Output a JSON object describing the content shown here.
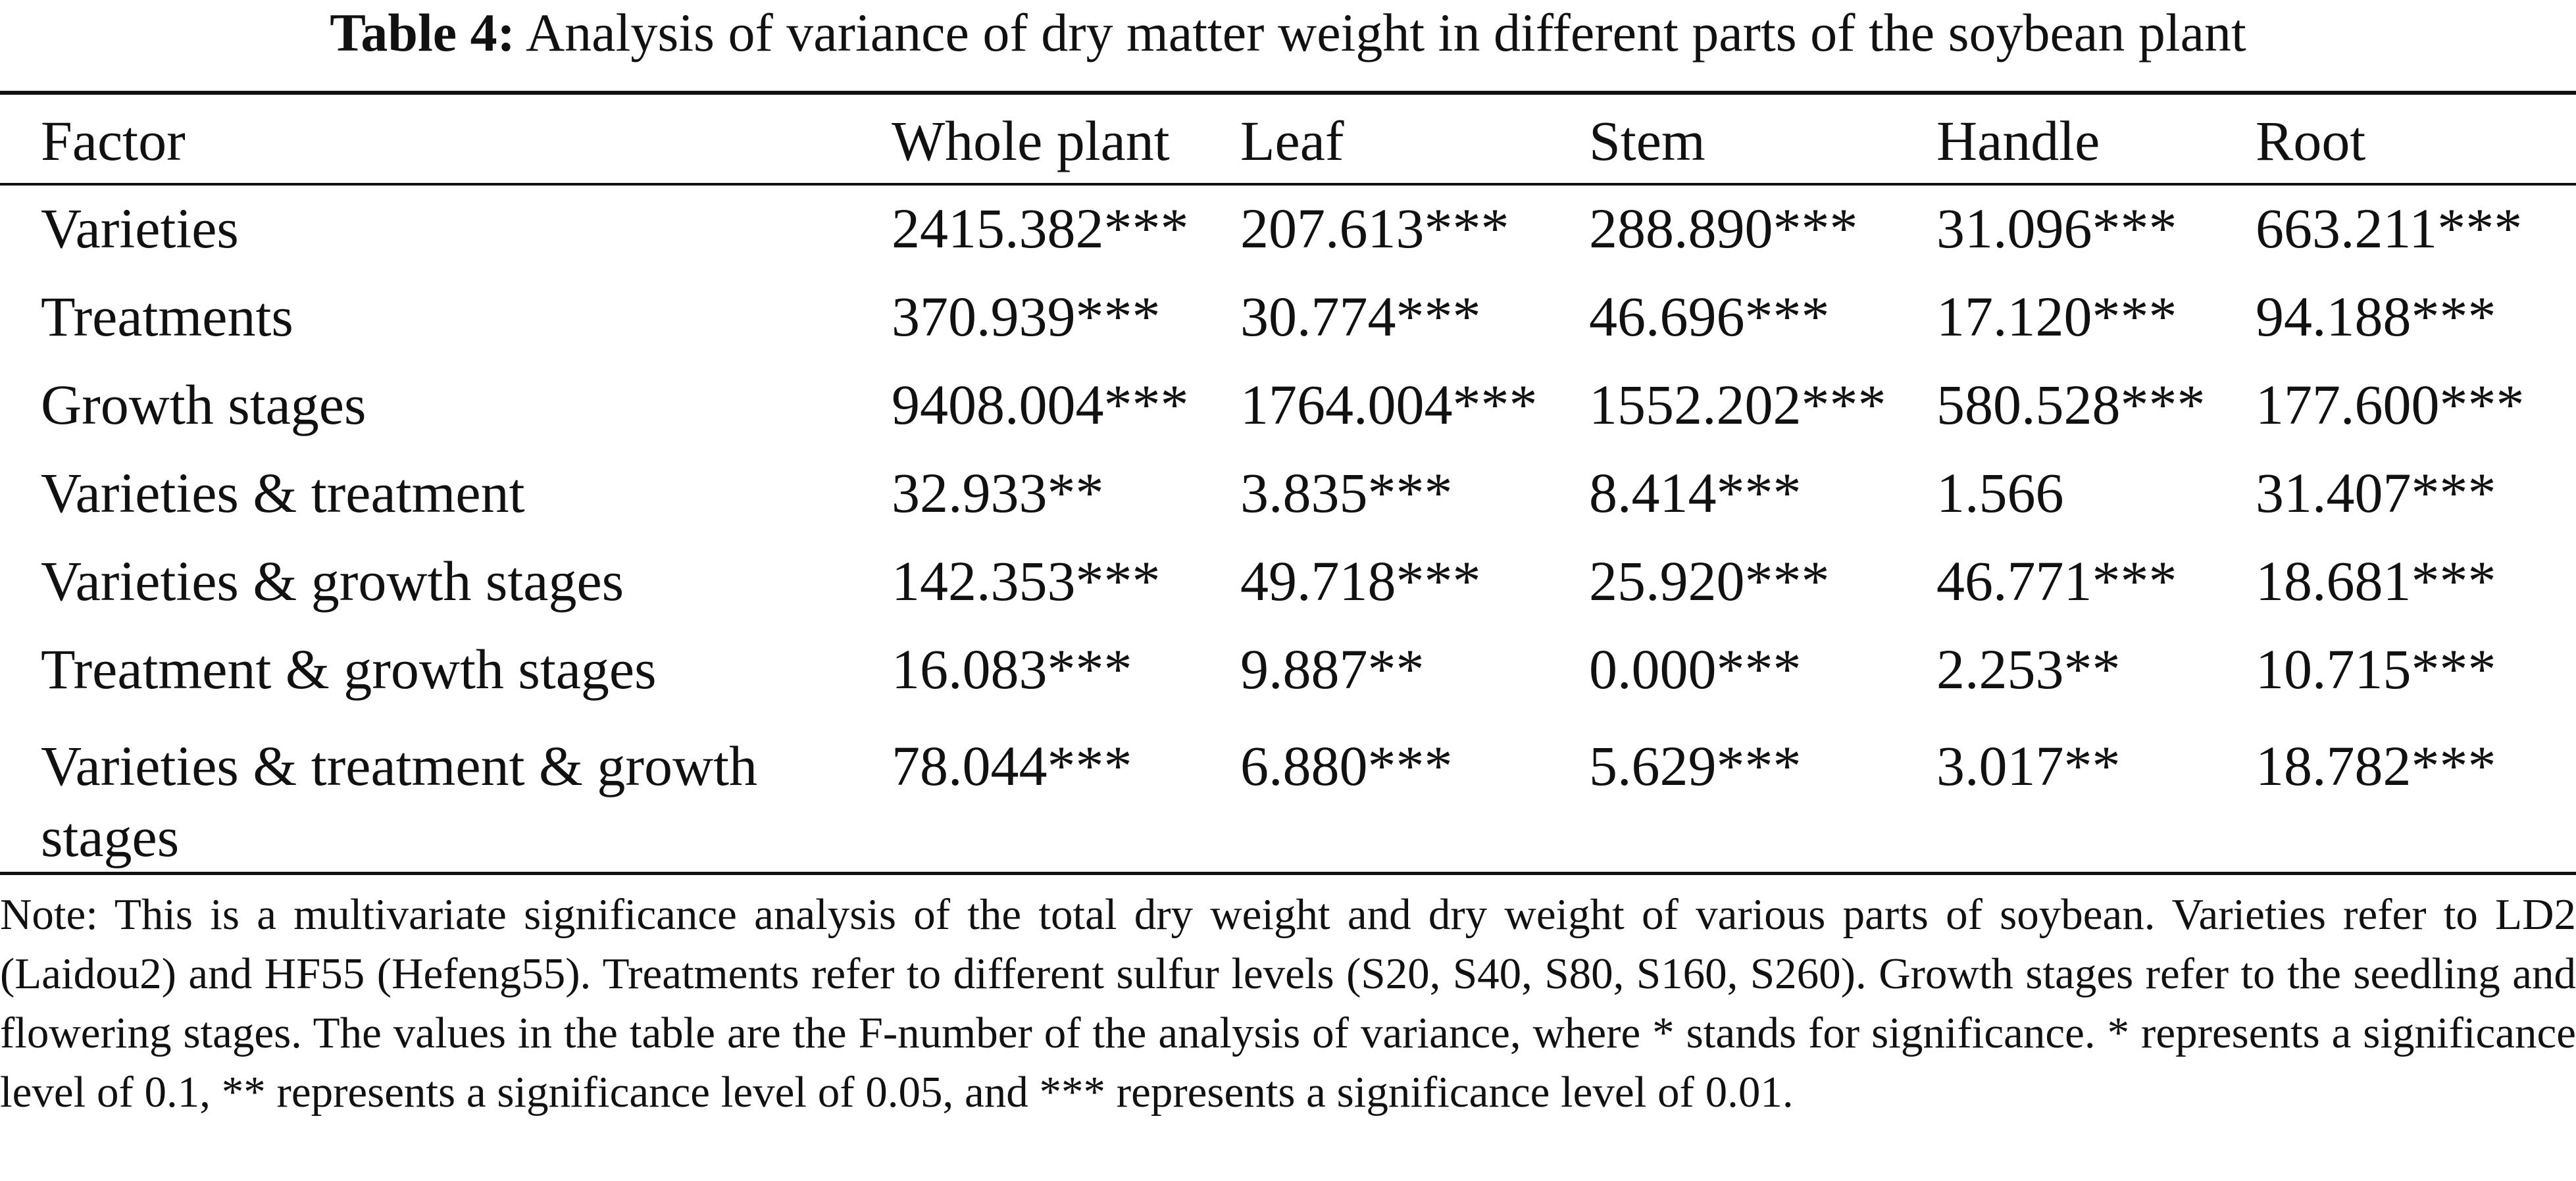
{
  "caption": {
    "label": "Table 4:",
    "text": "Analysis of variance of dry matter weight in different parts of the soybean plant"
  },
  "table": {
    "columns": [
      "Factor",
      "Whole plant",
      "Leaf",
      "Stem",
      "Handle",
      "Root"
    ],
    "rows": [
      {
        "factor": "Varieties",
        "values": [
          "2415.382***",
          "207.613***",
          "288.890***",
          "31.096***",
          "663.211***"
        ]
      },
      {
        "factor": "Treatments",
        "values": [
          "370.939***",
          "30.774***",
          "46.696***",
          "17.120***",
          "94.188***"
        ]
      },
      {
        "factor": "Growth stages",
        "values": [
          "9408.004***",
          "1764.004***",
          "1552.202***",
          "580.528***",
          "177.600***"
        ]
      },
      {
        "factor": "Varieties & treatment",
        "values": [
          "32.933**",
          "3.835***",
          "8.414***",
          "1.566",
          "31.407***"
        ]
      },
      {
        "factor": "Varieties & growth stages",
        "values": [
          "142.353***",
          "49.718***",
          "25.920***",
          "46.771***",
          "18.681***"
        ]
      },
      {
        "factor": "Treatment & growth stages",
        "values": [
          "16.083***",
          "9.887**",
          "0.000***",
          "2.253**",
          "10.715***"
        ]
      },
      {
        "factor": "Varieties & treatment & growth stages",
        "values": [
          "78.044***",
          "6.880***",
          "5.629***",
          "3.017**",
          "18.782***"
        ]
      }
    ]
  },
  "note": "Note: This is a multivariate significance analysis of the total dry weight and dry weight of various parts of soybean. Varieties refer to LD2 (Laidou2) and HF55 (Hefeng55). Treatments refer to different sulfur levels (S20, S40, S80, S160, S260). Growth stages refer to the seedling and flowering stages. The values in the table are the F-number of the analysis of variance, where * stands for significance. * represents a significance level of 0.1, ** represents a significance level of 0.05, and *** represents a significance level of 0.01."
}
